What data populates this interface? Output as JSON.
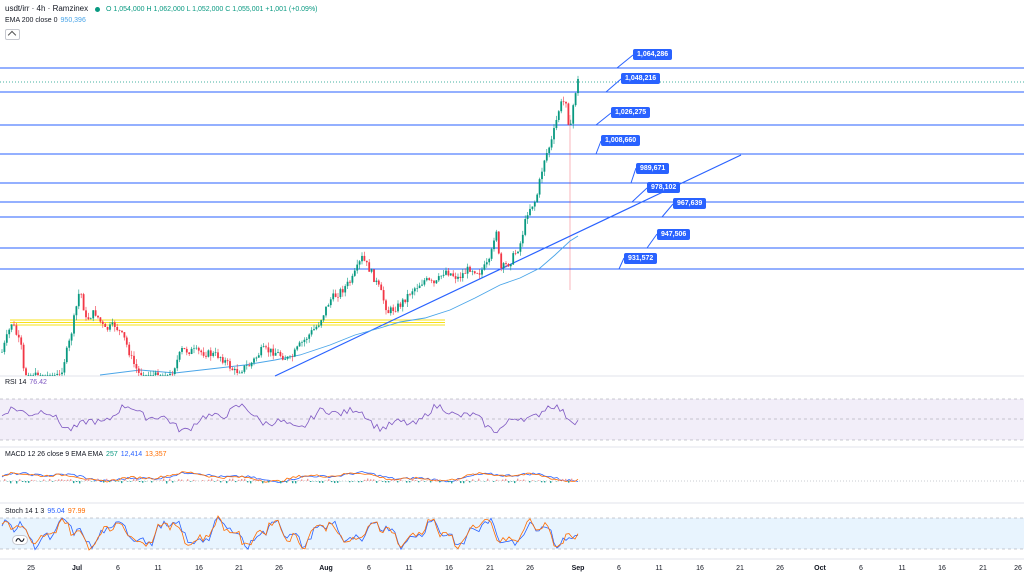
{
  "header": {
    "symbol": "usdt/irr",
    "timeframe": "4h",
    "exchange": "Ramzinex",
    "title": "usdt/irr · 4h · Ramzinex",
    "ohlc": "O 1,054,000  H 1,062,000  L 1,052,000  C 1,055,001  +1,001 (+0.09%)"
  },
  "indicators": {
    "ema": {
      "label": "EMA 200 close 0",
      "value": "950,396",
      "color": "#4aa5e8"
    },
    "rsi": {
      "label": "RSI 14",
      "value": "76.42",
      "color": "#7e57c2"
    },
    "macd": {
      "label": "MACD 12 26 close 9 EMA EMA",
      "v1": "257",
      "v2": "12,414",
      "v3": "13,357"
    },
    "stoch": {
      "label": "Stoch 14 1 3",
      "v1": "95.04",
      "v2": "97.99"
    }
  },
  "levels": [
    "1,064,286",
    "1,048,216",
    "1,026,275",
    "1,008,660",
    "989,671",
    "978,102",
    "967,639",
    "947,506",
    "931,572"
  ],
  "x_axis": [
    "25",
    "Jul",
    "6",
    "11",
    "16",
    "21",
    "26",
    "Aug",
    "6",
    "11",
    "16",
    "21",
    "26",
    "Sep",
    "6",
    "11",
    "16",
    "21",
    "26",
    "Oct",
    "6",
    "11",
    "16",
    "21",
    "26"
  ],
  "colors": {
    "up": "#089981",
    "down": "#f23645",
    "line": "#2962ff",
    "ema": "#4aa5e8",
    "rsi": "#7e57c2",
    "macd": "#2962ff",
    "signal": "#ff6d00",
    "zone": "#f7e01b"
  },
  "chart_data": {
    "type": "candlestick",
    "price_levels": [
      1064286,
      1048216,
      1026275,
      1008660,
      989671,
      978102,
      967639,
      947506,
      931572
    ],
    "ema200_last": 950396,
    "rsi_last": 76.42,
    "stoch_last": [
      95.04,
      97.99
    ]
  }
}
